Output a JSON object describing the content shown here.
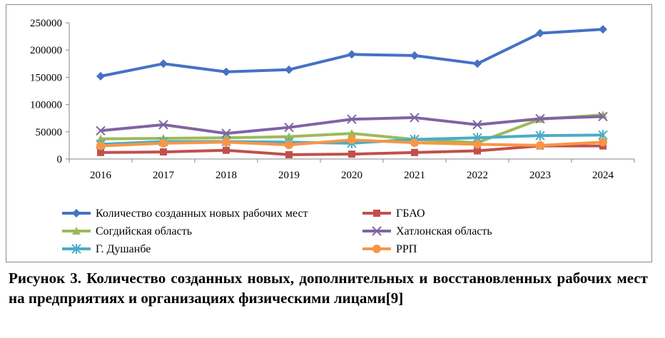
{
  "chart_data": {
    "type": "line",
    "title": "",
    "xlabel": "",
    "ylabel": "",
    "categories": [
      "2016",
      "2017",
      "2018",
      "2019",
      "2020",
      "2021",
      "2022",
      "2023",
      "2024"
    ],
    "ylim": [
      0,
      250000
    ],
    "yticks": [
      0,
      50000,
      100000,
      150000,
      200000,
      250000
    ],
    "ytick_labels": [
      "0",
      "50000",
      "100000",
      "150000",
      "200000",
      "250000"
    ],
    "grid": false,
    "legend_position": "bottom",
    "series": [
      {
        "name": "Количество созданных новых рабочих мест",
        "color": "#4472C4",
        "marker": "diamond",
        "values": [
          152000,
          175000,
          160000,
          164000,
          192000,
          190000,
          175000,
          231000,
          238000
        ]
      },
      {
        "name": "ГБАО",
        "color": "#C0504D",
        "marker": "square",
        "values": [
          12000,
          13000,
          16000,
          8000,
          9000,
          12000,
          15000,
          24000,
          24000
        ]
      },
      {
        "name": "Согдийская область",
        "color": "#9BBB59",
        "marker": "triangle",
        "values": [
          37000,
          38000,
          39000,
          41000,
          47000,
          36000,
          30000,
          73000,
          81000
        ]
      },
      {
        "name": "Хатлонская область",
        "color": "#8064A2",
        "marker": "x",
        "values": [
          52000,
          63000,
          47000,
          58000,
          73000,
          76000,
          63000,
          74000,
          78000
        ]
      },
      {
        "name": "Г. Душанбе",
        "color": "#4BACC6",
        "marker": "star",
        "values": [
          27000,
          32000,
          32000,
          31000,
          29000,
          36000,
          39000,
          43000,
          44000
        ]
      },
      {
        "name": "РРП",
        "color": "#F79646",
        "marker": "circle",
        "values": [
          24000,
          29000,
          31000,
          26000,
          35000,
          30000,
          27000,
          25000,
          31000
        ]
      }
    ]
  },
  "caption": "Рисунок 3. Количество созданных новых, дополнительных и восстановленных рабочих мест на предприятиях и организациях физическими лицами[9]"
}
